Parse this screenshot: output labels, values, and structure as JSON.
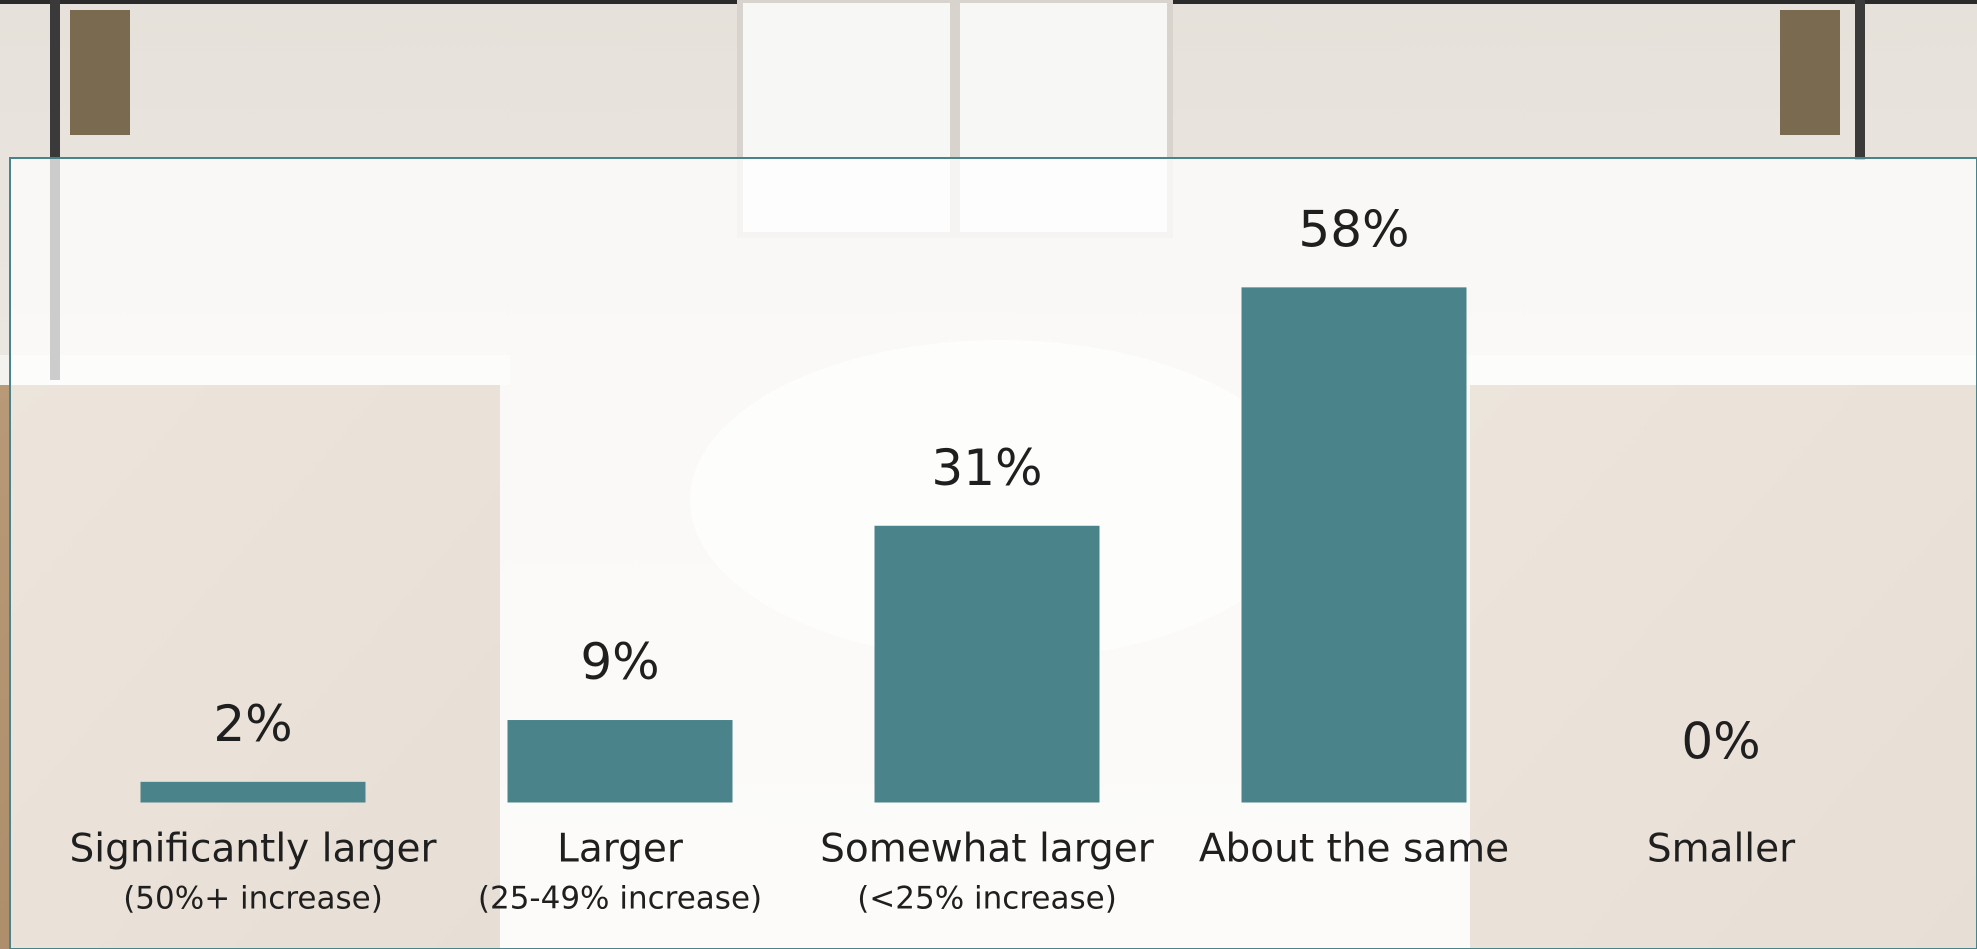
{
  "chart_data": {
    "type": "bar",
    "categories": [
      "Significantly larger",
      "Larger",
      "Somewhat larger",
      "About the same",
      "Smaller"
    ],
    "sublabels": [
      "(50%+ increase)",
      "(25-49% increase)",
      "(<25% increase)",
      null,
      null
    ],
    "values": [
      2,
      9,
      31,
      58,
      0
    ],
    "value_labels": [
      "2%",
      "9%",
      "31%",
      "58%",
      "0%"
    ],
    "color": "#4a8389"
  }
}
